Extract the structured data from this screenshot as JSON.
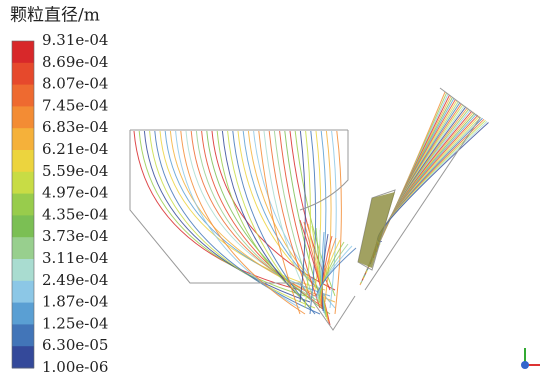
{
  "legend": {
    "title": "颗粒直径/m",
    "labels": [
      "9.31e-04",
      "8.69e-04",
      "8.07e-04",
      "7.45e-04",
      "6.83e-04",
      "6.21e-04",
      "5.59e-04",
      "4.97e-04",
      "4.35e-04",
      "3.73e-04",
      "3.11e-04",
      "2.49e-04",
      "1.87e-04",
      "1.25e-04",
      "6.30e-05",
      "1.00e-06"
    ],
    "colors": [
      "#d8282a",
      "#e6492c",
      "#ee6a30",
      "#f38c34",
      "#f5b13a",
      "#ecd43e",
      "#c8dc45",
      "#98cc4c",
      "#7bbf54",
      "#98cf8e",
      "#a9dcd0",
      "#8cc7e6",
      "#5a9fd3",
      "#4275b8",
      "#34499a"
    ]
  }
}
